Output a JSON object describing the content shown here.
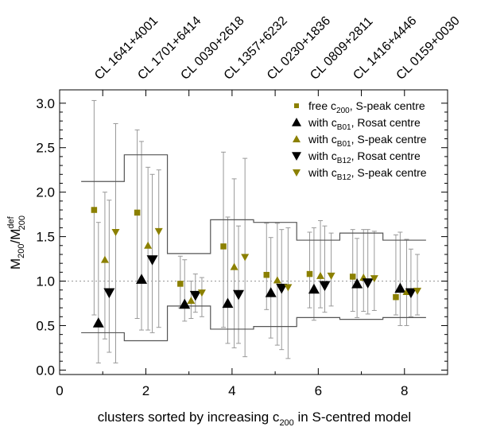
{
  "chart_data": {
    "type": "scatter",
    "xlabel": "clusters sorted by increasing c",
    "xlabel_sub": "200",
    "xlabel_tail": " in S-centred model",
    "ylabel_main": "M",
    "ylabel_sub1": "200",
    "ylabel_slash": "/M",
    "ylabel_sup": "def",
    "ylabel_sub2": "200",
    "xlim": [
      0,
      9
    ],
    "ylim": [
      -0.05,
      3.15
    ],
    "xticks": [
      0,
      2,
      4,
      6,
      8
    ],
    "xtick_labels": [
      "0",
      "2",
      "4",
      "6",
      "8"
    ],
    "yticks": [
      0.0,
      0.5,
      1.0,
      1.5,
      2.0,
      2.5,
      3.0
    ],
    "ytick_labels": [
      "0.0",
      "0.5",
      "1.0",
      "1.5",
      "2.0",
      "2.5",
      "3.0"
    ],
    "reference_line": 1.0,
    "cluster_positions": [
      1,
      2,
      3,
      4,
      5,
      6,
      7,
      8
    ],
    "cluster_names": [
      "CL 1641+4001",
      "CL 1701+6414",
      "CL 0030+2618",
      "CL 1357+6232",
      "CL 0230+1836",
      "CL 0809+2811",
      "CL 1416+4446",
      "CL 0159+0030"
    ],
    "upper_step": [
      2.12,
      2.42,
      1.31,
      1.69,
      1.66,
      1.46,
      1.54,
      1.46
    ],
    "lower_step": [
      0.42,
      0.33,
      0.72,
      0.46,
      0.49,
      0.59,
      0.57,
      0.59
    ],
    "legend": [
      {
        "key": "free",
        "pre": "free c",
        "sub": "200",
        "post": ", S-peak centre"
      },
      {
        "key": "b01r",
        "pre": "with c",
        "sub": "B01",
        "post": ", Rosat centre"
      },
      {
        "key": "b01s",
        "pre": "with c",
        "sub": "B01",
        "post": ", S-peak centre"
      },
      {
        "key": "b12r",
        "pre": "with c",
        "sub": "B12",
        "post": ", Rosat centre"
      },
      {
        "key": "b12s",
        "pre": "with c",
        "sub": "B12",
        "post": ", S-peak centre"
      }
    ],
    "series": [
      {
        "key": "free",
        "name": "free c200, S-peak centre",
        "marker": "square",
        "color": "#8b8000",
        "x": [
          0.8,
          1.8,
          2.8,
          3.8,
          4.8,
          5.8,
          6.8,
          7.8
        ],
        "y": [
          1.8,
          1.77,
          0.97,
          1.39,
          1.07,
          1.08,
          1.05,
          0.82
        ],
        "lo": [
          0.62,
          0.58,
          0.7,
          0.48,
          0.68,
          0.7,
          0.66,
          0.62
        ],
        "hi": [
          3.03,
          2.7,
          1.28,
          2.45,
          1.65,
          1.55,
          1.58,
          1.52
        ]
      },
      {
        "key": "b01r",
        "name": "with cB01, Rosat centre",
        "marker": "triangle-up",
        "color": "#000000",
        "x": [
          0.9,
          1.9,
          2.9,
          3.9,
          4.9,
          5.9,
          6.9,
          7.9
        ],
        "y": [
          0.53,
          1.02,
          0.74,
          0.75,
          0.87,
          0.91,
          0.97,
          0.92
        ],
        "lo": [
          0.08,
          0.45,
          0.55,
          0.3,
          0.36,
          0.56,
          0.59,
          0.5
        ],
        "hi": [
          1.66,
          2.57,
          1.24,
          1.72,
          1.49,
          1.6,
          1.48,
          1.55
        ]
      },
      {
        "key": "b01s",
        "name": "with cB01, S-peak centre",
        "marker": "triangle-up",
        "color": "#8b8000",
        "x": [
          1.05,
          2.05,
          3.05,
          4.05,
          5.05,
          6.05,
          7.05,
          8.05
        ],
        "y": [
          1.24,
          1.4,
          0.78,
          1.16,
          1.01,
          1.06,
          1.04,
          0.88
        ],
        "lo": [
          0.35,
          0.45,
          0.58,
          0.25,
          0.28,
          0.7,
          0.66,
          0.5
        ],
        "hi": [
          2.0,
          2.28,
          1.0,
          2.15,
          1.65,
          1.68,
          1.58,
          1.47
        ]
      },
      {
        "key": "b12r",
        "name": "with cB12, Rosat centre",
        "marker": "triangle-down",
        "color": "#000000",
        "x": [
          1.15,
          2.15,
          3.15,
          4.15,
          5.15,
          6.15,
          7.15,
          8.15
        ],
        "y": [
          0.87,
          1.24,
          0.84,
          0.85,
          0.92,
          0.95,
          0.98,
          0.87
        ],
        "lo": [
          0.2,
          0.42,
          0.65,
          0.3,
          0.23,
          0.65,
          0.63,
          0.6
        ],
        "hi": [
          1.91,
          2.2,
          1.08,
          1.62,
          1.58,
          1.62,
          1.58,
          1.36
        ]
      },
      {
        "key": "b12s",
        "name": "with cB12, S-peak centre",
        "marker": "triangle-down",
        "color": "#8b8000",
        "x": [
          1.3,
          2.3,
          3.3,
          4.3,
          5.3,
          6.3,
          7.3,
          8.3
        ],
        "y": [
          1.55,
          1.56,
          0.87,
          1.27,
          0.93,
          1.06,
          1.03,
          0.89
        ],
        "lo": [
          0.08,
          0.48,
          0.6,
          0.15,
          0.13,
          0.72,
          0.67,
          0.62
        ],
        "hi": [
          2.77,
          2.25,
          1.04,
          2.38,
          1.6,
          1.54,
          1.56,
          1.3
        ]
      }
    ]
  }
}
